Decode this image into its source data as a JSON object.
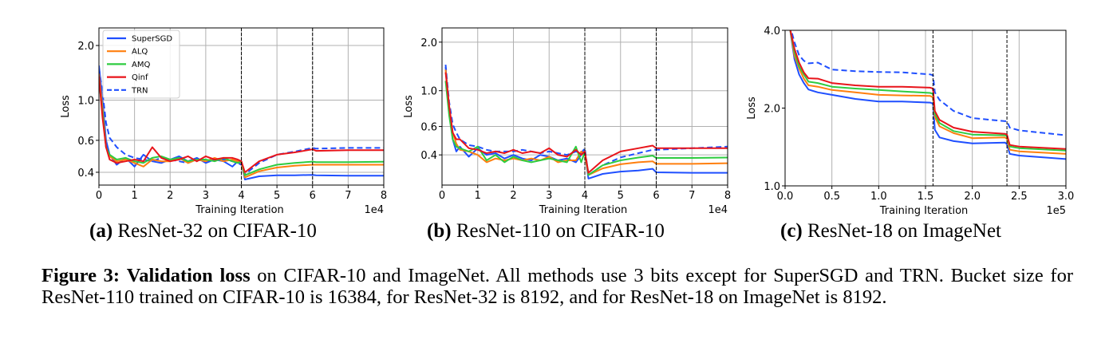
{
  "colors": {
    "SuperSGD": "#1f4fff",
    "ALQ": "#ff7f0e",
    "AMQ": "#2ecc40",
    "Qinf": "#e8141a",
    "TRN": "#1f4fff"
  },
  "legend": [
    {
      "name": "SuperSGD",
      "style": "solid"
    },
    {
      "name": "ALQ",
      "style": "solid"
    },
    {
      "name": "AMQ",
      "style": "solid"
    },
    {
      "name": "Qinf",
      "style": "solid"
    },
    {
      "name": "TRN",
      "style": "dashed"
    }
  ],
  "subcaptions": [
    {
      "label": "(a)",
      "text": " ResNet-32 on CIFAR-10"
    },
    {
      "label": "(b)",
      "text": " ResNet-110 on CIFAR-10"
    },
    {
      "label": "(c)",
      "text": " ResNet-18 on ImageNet"
    }
  ],
  "caption": {
    "figure_label": "Figure 3:",
    "bold_text": "Validation loss",
    "text": " on CIFAR-10 and ImageNet.  All methods use 3 bits except for SuperSGD and TRN. Bucket size for ResNet-110 trained on CIFAR-10 is 16384, for ResNet-32 is 8192, and for ResNet-18 on ImageNet is 8192."
  },
  "chart_data": [
    {
      "type": "line",
      "xlabel": "Training Iteration",
      "ylabel": "Loss",
      "x_offset_label": "1e4",
      "xlim": [
        0,
        8
      ],
      "ylim": [
        0.34,
        2.5
      ],
      "yscale": "log",
      "grid": "both",
      "legend": "top-left",
      "xticks": [
        "0",
        "1",
        "2",
        "3",
        "4",
        "5",
        "6",
        "7",
        "8"
      ],
      "yticks": [
        "0.4",
        "0.6",
        "1.0",
        "2.0"
      ],
      "vlines": [
        4,
        6
      ],
      "x": [
        0,
        0.1,
        0.2,
        0.3,
        0.5,
        0.75,
        1,
        1.25,
        1.5,
        1.75,
        2,
        2.25,
        2.5,
        2.75,
        3,
        3.25,
        3.5,
        3.75,
        3.9,
        4.0,
        4.1,
        4.5,
        5,
        5.5,
        6,
        6.1,
        7,
        8
      ],
      "series": [
        {
          "name": "SuperSGD",
          "values": [
            1.55,
            1.0,
            0.6,
            0.5,
            0.44,
            0.48,
            0.43,
            0.5,
            0.46,
            0.45,
            0.47,
            0.49,
            0.46,
            0.48,
            0.45,
            0.47,
            0.46,
            0.43,
            0.46,
            0.45,
            0.365,
            0.38,
            0.385,
            0.385,
            0.387,
            0.385,
            0.383,
            0.383
          ]
        },
        {
          "name": "ALQ",
          "values": [
            1.4,
            0.9,
            0.55,
            0.49,
            0.46,
            0.47,
            0.45,
            0.43,
            0.47,
            0.46,
            0.46,
            0.48,
            0.45,
            0.47,
            0.46,
            0.48,
            0.46,
            0.47,
            0.46,
            0.45,
            0.375,
            0.405,
            0.425,
            0.435,
            0.44,
            0.44,
            0.44,
            0.44
          ]
        },
        {
          "name": "AMQ",
          "values": [
            1.3,
            0.85,
            0.55,
            0.5,
            0.47,
            0.48,
            0.46,
            0.45,
            0.48,
            0.49,
            0.47,
            0.48,
            0.46,
            0.47,
            0.47,
            0.46,
            0.48,
            0.46,
            0.45,
            0.46,
            0.385,
            0.415,
            0.44,
            0.45,
            0.458,
            0.455,
            0.455,
            0.457
          ]
        },
        {
          "name": "Qinf",
          "values": [
            1.35,
            0.8,
            0.55,
            0.47,
            0.45,
            0.46,
            0.47,
            0.46,
            0.55,
            0.48,
            0.46,
            0.47,
            0.49,
            0.46,
            0.49,
            0.47,
            0.48,
            0.48,
            0.47,
            0.46,
            0.4,
            0.46,
            0.5,
            0.515,
            0.535,
            0.525,
            0.53,
            0.53
          ]
        },
        {
          "name": "TRN",
          "values": [
            1.5,
            1.1,
            0.75,
            0.62,
            0.55,
            0.5,
            0.48,
            0.47,
            0.46,
            0.48,
            0.47,
            0.46,
            0.45,
            0.47,
            0.46,
            0.47,
            0.47,
            0.46,
            0.45,
            0.44,
            0.39,
            0.45,
            0.5,
            0.52,
            0.545,
            0.54,
            0.545,
            0.545
          ]
        }
      ]
    },
    {
      "type": "line",
      "xlabel": "Training Iteration",
      "ylabel": "Loss",
      "x_offset_label": "1e4",
      "xlim": [
        0,
        8
      ],
      "ylim": [
        0.26,
        2.45
      ],
      "yscale": "log",
      "grid": "both",
      "xticks": [
        "0",
        "1",
        "2",
        "3",
        "4",
        "5",
        "6",
        "7",
        "8"
      ],
      "yticks": [
        "0.4",
        "0.6",
        "1.0",
        "2.0"
      ],
      "vlines": [
        4,
        6
      ],
      "x": [
        0.1,
        0.2,
        0.3,
        0.4,
        0.5,
        0.75,
        1,
        1.25,
        1.5,
        1.75,
        2,
        2.25,
        2.5,
        2.75,
        3,
        3.25,
        3.5,
        3.75,
        3.9,
        4.0,
        4.1,
        4.5,
        5,
        5.5,
        5.9,
        6.0,
        7,
        8
      ],
      "series": [
        {
          "name": "SuperSGD",
          "values": [
            1.4,
            0.75,
            0.5,
            0.42,
            0.45,
            0.39,
            0.44,
            0.4,
            0.41,
            0.38,
            0.4,
            0.38,
            0.37,
            0.4,
            0.39,
            0.37,
            0.38,
            0.36,
            0.4,
            0.42,
            0.285,
            0.305,
            0.315,
            0.32,
            0.328,
            0.312,
            0.31,
            0.31
          ]
        },
        {
          "name": "ALQ",
          "values": [
            1.35,
            0.8,
            0.55,
            0.47,
            0.43,
            0.42,
            0.4,
            0.36,
            0.38,
            0.37,
            0.38,
            0.37,
            0.38,
            0.37,
            0.39,
            0.36,
            0.37,
            0.37,
            0.42,
            0.4,
            0.3,
            0.33,
            0.35,
            0.36,
            0.365,
            0.352,
            0.352,
            0.355
          ]
        },
        {
          "name": "AMQ",
          "values": [
            1.15,
            0.7,
            0.5,
            0.45,
            0.44,
            0.42,
            0.45,
            0.37,
            0.4,
            0.36,
            0.39,
            0.37,
            0.36,
            0.37,
            0.38,
            0.37,
            0.36,
            0.45,
            0.36,
            0.42,
            0.3,
            0.345,
            0.37,
            0.385,
            0.396,
            0.383,
            0.383,
            0.385
          ]
        },
        {
          "name": "Qinf",
          "values": [
            1.3,
            0.8,
            0.55,
            0.5,
            0.5,
            0.44,
            0.43,
            0.41,
            0.42,
            0.41,
            0.43,
            0.41,
            0.42,
            0.41,
            0.44,
            0.4,
            0.39,
            0.43,
            0.4,
            0.42,
            0.31,
            0.37,
            0.42,
            0.44,
            0.457,
            0.44,
            0.44,
            0.44
          ]
        },
        {
          "name": "TRN",
          "values": [
            1.45,
            0.85,
            0.62,
            0.55,
            0.5,
            0.46,
            0.45,
            0.43,
            0.42,
            0.42,
            0.42,
            0.43,
            0.42,
            0.41,
            0.42,
            0.41,
            0.4,
            0.42,
            0.41,
            0.44,
            0.3,
            0.345,
            0.386,
            0.41,
            0.43,
            0.43,
            0.44,
            0.45
          ]
        }
      ]
    },
    {
      "type": "line",
      "xlabel": "Training Iteration",
      "ylabel": "Loss",
      "x_offset_label": "1e5",
      "xlim": [
        0,
        3
      ],
      "ylim": [
        1.0,
        4.0
      ],
      "yscale": "log",
      "grid": "x",
      "xticks": [
        "0.0",
        "0.5",
        "1.0",
        "1.5",
        "2.0",
        "2.5",
        "3.0"
      ],
      "yticks": [
        "1.0",
        "2.0",
        "4.0"
      ],
      "vlines": [
        1.58,
        2.37
      ],
      "x": [
        0.05,
        0.1,
        0.15,
        0.2,
        0.25,
        0.35,
        0.5,
        0.75,
        1.0,
        1.25,
        1.55,
        1.58,
        1.6,
        1.65,
        1.8,
        2.0,
        2.35,
        2.37,
        2.4,
        2.5,
        3.0
      ],
      "series": [
        {
          "name": "SuperSGD",
          "values": [
            4.1,
            3.1,
            2.7,
            2.5,
            2.36,
            2.3,
            2.25,
            2.17,
            2.12,
            2.12,
            2.1,
            2.08,
            1.65,
            1.54,
            1.49,
            1.46,
            1.47,
            1.45,
            1.33,
            1.31,
            1.27
          ]
        },
        {
          "name": "ALQ",
          "values": [
            4.1,
            3.2,
            2.85,
            2.6,
            2.45,
            2.42,
            2.35,
            2.3,
            2.25,
            2.24,
            2.23,
            2.2,
            1.85,
            1.7,
            1.6,
            1.53,
            1.54,
            1.52,
            1.38,
            1.36,
            1.33
          ]
        },
        {
          "name": "AMQ",
          "values": [
            4.1,
            3.3,
            2.9,
            2.7,
            2.53,
            2.5,
            2.42,
            2.38,
            2.35,
            2.32,
            2.29,
            2.27,
            1.9,
            1.75,
            1.63,
            1.58,
            1.57,
            1.56,
            1.42,
            1.4,
            1.37
          ]
        },
        {
          "name": "Qinf",
          "values": [
            4.1,
            3.4,
            3.0,
            2.75,
            2.61,
            2.6,
            2.5,
            2.45,
            2.42,
            2.42,
            2.4,
            2.38,
            1.95,
            1.8,
            1.68,
            1.62,
            1.59,
            1.58,
            1.44,
            1.42,
            1.39
          ]
        },
        {
          "name": "TRN",
          "values": [
            4.2,
            3.6,
            3.2,
            3.05,
            2.98,
            3.0,
            2.82,
            2.78,
            2.76,
            2.75,
            2.7,
            2.68,
            2.3,
            2.15,
            1.95,
            1.83,
            1.78,
            1.78,
            1.68,
            1.64,
            1.57
          ]
        }
      ]
    }
  ]
}
